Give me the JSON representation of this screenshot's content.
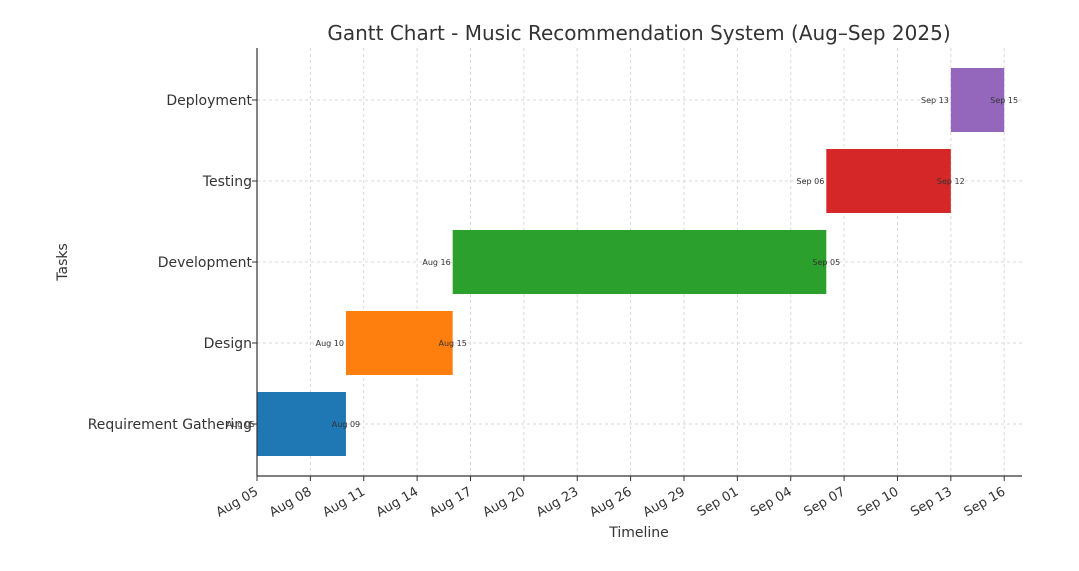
{
  "chart_data": {
    "type": "gantt",
    "title": "Gantt Chart - Music Recommendation System (Aug–Sep 2025)",
    "xlabel": "Timeline",
    "ylabel": "Tasks",
    "grid": true,
    "x_ticks": [
      "Aug 05",
      "Aug 08",
      "Aug 11",
      "Aug 14",
      "Aug 17",
      "Aug 20",
      "Aug 23",
      "Aug 26",
      "Aug 29",
      "Sep 01",
      "Sep 04",
      "Sep 07",
      "Sep 10",
      "Sep 13",
      "Sep 16"
    ],
    "xlim": [
      "2025-08-05",
      "2025-09-17"
    ],
    "tasks": [
      {
        "name": "Requirement Gathering",
        "start": "2025-08-05",
        "end": "2025-08-10",
        "start_label": "Aug 05",
        "end_label": "Aug 09",
        "color": "#1f77b4"
      },
      {
        "name": "Design",
        "start": "2025-08-10",
        "end": "2025-08-16",
        "start_label": "Aug 10",
        "end_label": "Aug 15",
        "color": "#ff7f0e"
      },
      {
        "name": "Development",
        "start": "2025-08-16",
        "end": "2025-09-06",
        "start_label": "Aug 16",
        "end_label": "Sep 05",
        "color": "#2ca02c"
      },
      {
        "name": "Testing",
        "start": "2025-09-06",
        "end": "2025-09-13",
        "start_label": "Sep 06",
        "end_label": "Sep 12",
        "color": "#d62728"
      },
      {
        "name": "Deployment",
        "start": "2025-09-13",
        "end": "2025-09-16",
        "start_label": "Sep 13",
        "end_label": "Sep 15",
        "color": "#9467bd"
      }
    ]
  }
}
